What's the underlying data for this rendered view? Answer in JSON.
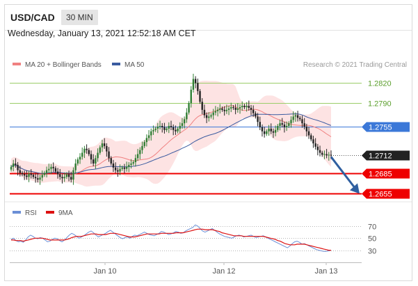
{
  "header": {
    "symbol": "USD/CAD",
    "timeframe": "30 MIN"
  },
  "datetime": "Wednesday, January 13, 2021 12:52:18 AM CET",
  "legend": {
    "bb_label": "MA 20 + Bollinger Bands",
    "ma50_label": "MA 50",
    "credit": "Research © 2021 Trading Central",
    "rsi_label": "RSI",
    "rsi_ma_label": "9MA"
  },
  "colors": {
    "bb": "#f08080",
    "band_fill": "#fde0e0",
    "ma50": "#3a5ba0",
    "green": "#9acd68",
    "blue": "#3b78d8",
    "red": "#ee0000",
    "up": "#2e7d32",
    "down": "#222222",
    "rsi": "#6b8fd6",
    "rsi_ma": "#dd1111",
    "arrow": "#2f5fa0"
  },
  "chart_data": [
    {
      "type": "candlestick",
      "title": "USD/CAD",
      "timeframe": "30 MIN",
      "x_tick_labels": [
        "Jan 10",
        "Jan 12",
        "Jan 13"
      ],
      "ylim": [
        1.2645,
        1.284
      ],
      "levels": [
        {
          "value": 1.282,
          "label": "1.2820",
          "style": "green"
        },
        {
          "value": 1.279,
          "label": "1.2790",
          "style": "green"
        },
        {
          "value": 1.2755,
          "label": "1.2755",
          "style": "blue"
        },
        {
          "value": 1.2712,
          "label": "1.2712",
          "style": "current"
        },
        {
          "value": 1.2685,
          "label": "1.2685",
          "style": "red"
        },
        {
          "value": 1.2655,
          "label": "1.2655",
          "style": "red"
        }
      ],
      "close_prices": [
        1.2695,
        1.27,
        1.2698,
        1.269,
        1.2686,
        1.2684,
        1.2682,
        1.268,
        1.2685,
        1.2683,
        1.268,
        1.2678,
        1.2676,
        1.2679,
        1.2683,
        1.2686,
        1.269,
        1.2692,
        1.2695,
        1.2693,
        1.2688,
        1.2684,
        1.268,
        1.2678,
        1.268,
        1.2684,
        1.268,
        1.2676,
        1.269,
        1.27,
        1.2706,
        1.271,
        1.2716,
        1.2722,
        1.272,
        1.2714,
        1.2706,
        1.27,
        1.2708,
        1.2716,
        1.2724,
        1.273,
        1.2726,
        1.2718,
        1.2708,
        1.27,
        1.2694,
        1.269,
        1.2688,
        1.2692,
        1.2694,
        1.2692,
        1.2695,
        1.2698,
        1.27,
        1.2702,
        1.2708,
        1.2714,
        1.272,
        1.2726,
        1.2732,
        1.2738,
        1.2742,
        1.2748,
        1.275,
        1.2752,
        1.2755,
        1.2756,
        1.2754,
        1.275,
        1.2752,
        1.2756,
        1.2754,
        1.275,
        1.2748,
        1.2752,
        1.2756,
        1.276,
        1.2766,
        1.2776,
        1.279,
        1.281,
        1.2826,
        1.282,
        1.2808,
        1.2792,
        1.278,
        1.2772,
        1.2768,
        1.277,
        1.2772,
        1.2776,
        1.2778,
        1.278,
        1.2782,
        1.278,
        1.2778,
        1.278,
        1.2782,
        1.2784,
        1.2783,
        1.278,
        1.2782,
        1.2784,
        1.2786,
        1.2784,
        1.2786,
        1.2783,
        1.278,
        1.2775,
        1.277,
        1.2762,
        1.2754,
        1.2748,
        1.2744,
        1.2748,
        1.2752,
        1.2748,
        1.2746,
        1.275,
        1.2756,
        1.276,
        1.2758,
        1.2754,
        1.2756,
        1.276,
        1.2765,
        1.277,
        1.2772,
        1.2768,
        1.2766,
        1.276,
        1.2755,
        1.2748,
        1.2742,
        1.2736,
        1.273,
        1.2725,
        1.272,
        1.2716,
        1.2713,
        1.2714,
        1.2712,
        1.2713,
        1.2712
      ],
      "series": [
        {
          "name": "MA 20 + Bollinger Bands"
        },
        {
          "name": "MA 50"
        }
      ]
    },
    {
      "type": "line",
      "title": "RSI",
      "y_tick_labels": [
        "70",
        "50",
        "30"
      ],
      "ylim": [
        18,
        78
      ],
      "series": [
        {
          "name": "RSI",
          "values": [
            48,
            50,
            46,
            44,
            45,
            43,
            47,
            52,
            55,
            53,
            50,
            49,
            51,
            50,
            47,
            44,
            45,
            48,
            50,
            49,
            46,
            44,
            47,
            51,
            55,
            58,
            56,
            53,
            50,
            52,
            54,
            57,
            60,
            62,
            59,
            55,
            52,
            54,
            56,
            58,
            61,
            63,
            60,
            57,
            54,
            51,
            49,
            51,
            52,
            50,
            53,
            55,
            54,
            56,
            58,
            60,
            58,
            56,
            55,
            54,
            56,
            58,
            61,
            60,
            58,
            56,
            57,
            59,
            61,
            60,
            58,
            59,
            62,
            64,
            66,
            68,
            72,
            70,
            66,
            62,
            60,
            62,
            64,
            66,
            63,
            60,
            57,
            55,
            53,
            52,
            51,
            50,
            52,
            54,
            55,
            54,
            52,
            53,
            54,
            55,
            53,
            51,
            52,
            53,
            54,
            52,
            50,
            48,
            46,
            44,
            42,
            40,
            38,
            36,
            34,
            37,
            41,
            44,
            45,
            43,
            40,
            41,
            39,
            37,
            35,
            33,
            31,
            30,
            29,
            28,
            28,
            29,
            30
          ]
        },
        {
          "name": "9MA",
          "values": [
            47,
            47,
            46,
            46,
            46,
            45,
            46,
            47,
            48,
            49,
            50,
            50,
            50,
            50,
            49,
            48,
            47,
            47,
            47,
            47,
            47,
            47,
            47,
            48,
            49,
            51,
            52,
            53,
            53,
            53,
            54,
            55,
            56,
            57,
            57,
            57,
            56,
            56,
            56,
            56,
            57,
            58,
            58,
            58,
            57,
            56,
            55,
            54,
            53,
            52,
            52,
            52,
            53,
            54,
            55,
            56,
            57,
            57,
            57,
            57,
            57,
            57,
            58,
            58,
            58,
            58,
            58,
            58,
            59,
            59,
            59,
            59,
            60,
            61,
            62,
            63,
            64,
            65,
            65,
            65,
            64,
            64,
            64,
            64,
            63,
            62,
            61,
            59,
            58,
            57,
            56,
            55,
            54,
            54,
            54,
            54,
            53,
            53,
            53,
            53,
            53,
            53,
            53,
            53,
            53,
            52,
            51,
            50,
            49,
            48,
            46,
            45,
            43,
            41,
            40,
            39,
            39,
            39,
            40,
            40,
            40,
            40,
            39,
            38,
            37,
            36,
            35,
            34,
            33,
            32,
            31,
            30,
            30
          ]
        }
      ]
    }
  ]
}
